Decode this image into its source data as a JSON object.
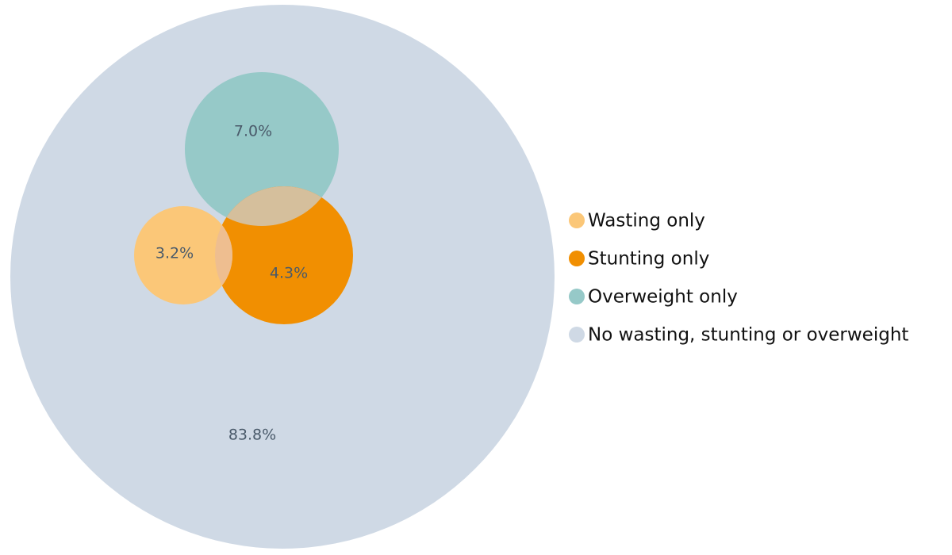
{
  "chart_data": {
    "type": "venn",
    "title": "",
    "sets": [
      {
        "key": "none",
        "name": "No wasting, stunting or overweight",
        "value": 83.8,
        "label": "83.8%",
        "color": "#cfd9e5"
      },
      {
        "key": "overweight",
        "name": "Overweight only",
        "value": 7.0,
        "label": "7.0%",
        "color": "#96c9c8"
      },
      {
        "key": "stunting",
        "name": "Stunting only",
        "value": 4.3,
        "label": "4.3%",
        "color": "#f18f01"
      },
      {
        "key": "wasting",
        "name": "Wasting only",
        "value": 3.2,
        "label": "3.2%",
        "color": "#fbc778"
      }
    ],
    "overlaps": [
      {
        "sets": [
          "wasting",
          "stunting"
        ],
        "color": "#eebe90"
      },
      {
        "sets": [
          "overweight",
          "stunting"
        ],
        "color": "#d5bf9c"
      }
    ],
    "legend": {
      "position": "right",
      "items": [
        {
          "label": "Wasting only",
          "color": "#fbc778"
        },
        {
          "label": "Stunting only",
          "color": "#f18f01"
        },
        {
          "label": "Overweight only",
          "color": "#96c9c8"
        },
        {
          "label": "No wasting, stunting or overweight",
          "color": "#cfd9e5"
        }
      ]
    }
  }
}
